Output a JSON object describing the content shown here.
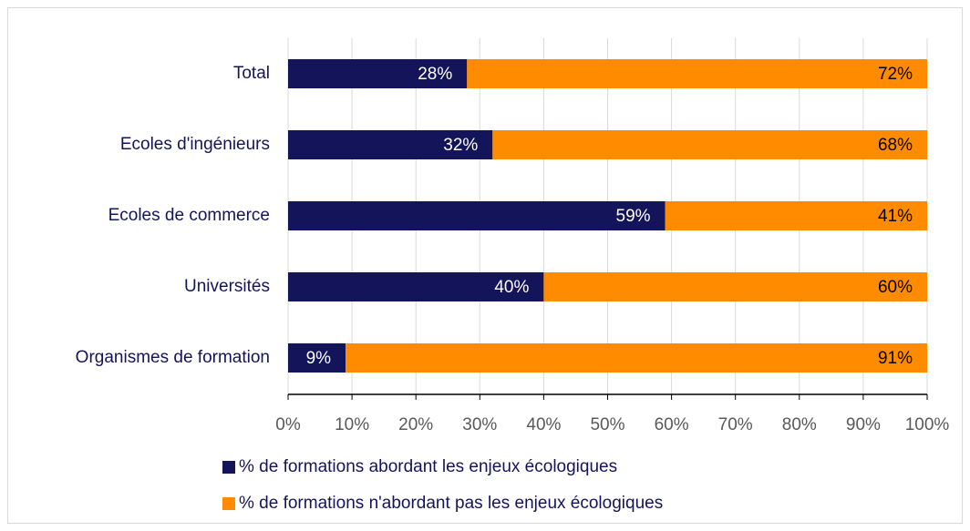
{
  "chart_data": {
    "type": "stacked-bar-horizontal",
    "categories": [
      "Total",
      "Ecoles d'ingénieurs",
      "Ecoles de commerce",
      "Universités",
      "Organismes de formation"
    ],
    "series": [
      {
        "name": "% de formations abordant les enjeux écologiques",
        "color": "#14145a",
        "values": [
          28,
          32,
          59,
          40,
          9
        ],
        "value_labels": [
          "28%",
          "32%",
          "59%",
          "40%",
          "9%"
        ]
      },
      {
        "name": "% de formations n'abordant pas les enjeux écologiques",
        "color": "#ff8c00",
        "values": [
          72,
          68,
          41,
          60,
          91
        ],
        "value_labels": [
          "72%",
          "68%",
          "41%",
          "60%",
          "91%"
        ]
      }
    ],
    "xlim": [
      0,
      100
    ],
    "xticks": [
      {
        "value": 0,
        "label": "0%"
      },
      {
        "value": 10,
        "label": "10%"
      },
      {
        "value": 20,
        "label": "20%"
      },
      {
        "value": 30,
        "label": "30%"
      },
      {
        "value": 40,
        "label": "40%"
      },
      {
        "value": 50,
        "label": "50%"
      },
      {
        "value": 60,
        "label": "60%"
      },
      {
        "value": 70,
        "label": "70%"
      },
      {
        "value": 80,
        "label": "80%"
      },
      {
        "value": 90,
        "label": "90%"
      },
      {
        "value": 100,
        "label": "100%"
      }
    ],
    "grid": true,
    "legend": "bottom"
  }
}
